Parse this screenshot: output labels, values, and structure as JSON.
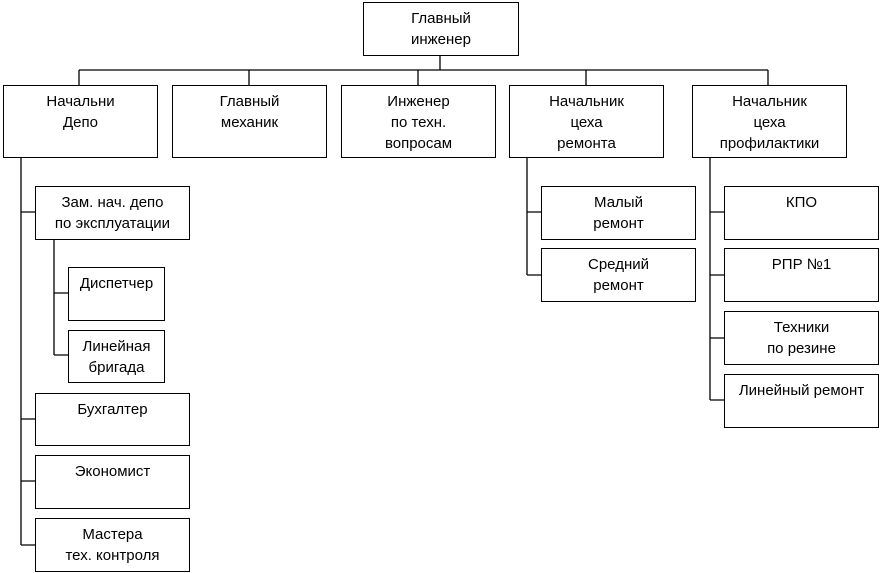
{
  "nodes": {
    "chief_engineer": [
      "Главный",
      "инженер"
    ],
    "depot_head": [
      "Начальни",
      "Депо"
    ],
    "chief_mechanic": [
      "Главный",
      "механик"
    ],
    "tech_engineer": [
      "Инженер",
      "по техн.",
      "вопросам"
    ],
    "repair_shop_head": [
      "Начальник",
      "цеха",
      "ремонта"
    ],
    "prevention_shop_head": [
      "Начальник",
      "цеха",
      "профилактики"
    ],
    "deputy_operations": [
      "Зам. нач. депо",
      "по эксплуатации"
    ],
    "dispatcher": [
      "Диспетчер"
    ],
    "line_brigade": [
      "Линейная",
      "бригада"
    ],
    "accountant": [
      "Бухгалтер"
    ],
    "economist": [
      "Экономист"
    ],
    "quality_masters": [
      "Мастера",
      "тех. контроля"
    ],
    "minor_repair": [
      "Малый",
      "ремонт"
    ],
    "medium_repair": [
      "Средний",
      "ремонт"
    ],
    "kpo": [
      "КПО"
    ],
    "rpr1": [
      "РПР №1"
    ],
    "rubber_techs": [
      "Техники",
      "по резине"
    ],
    "line_repair": [
      "Линейный ремонт"
    ]
  }
}
